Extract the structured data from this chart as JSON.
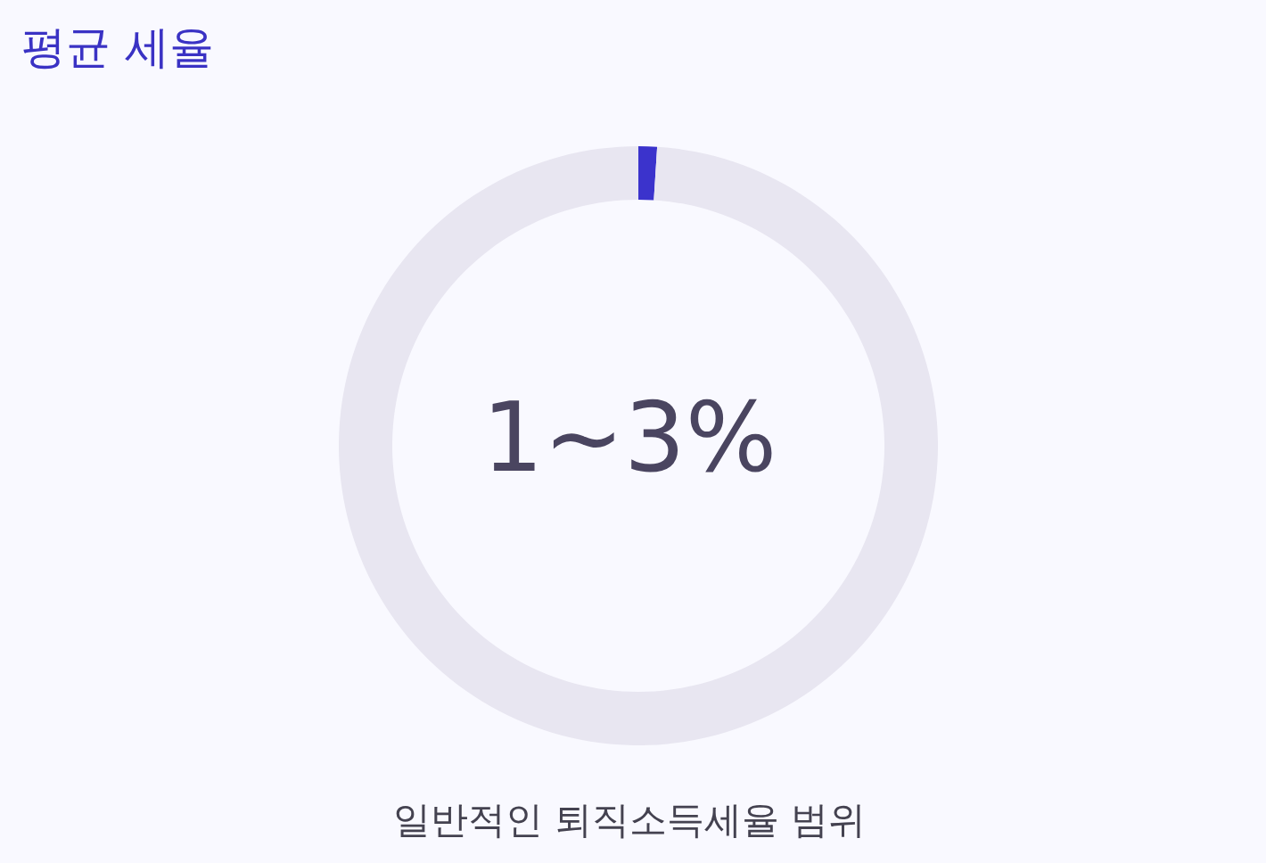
{
  "chart_data": {
    "type": "donut",
    "title": "평균 세율",
    "categories": [
      null,
      null
    ],
    "values": [
      1,
      99
    ],
    "colors": [
      "#3b33cc",
      "#e8e6f1"
    ],
    "annotations": [
      "1~3%",
      "일반적인 퇴직소득세율 범위"
    ]
  }
}
